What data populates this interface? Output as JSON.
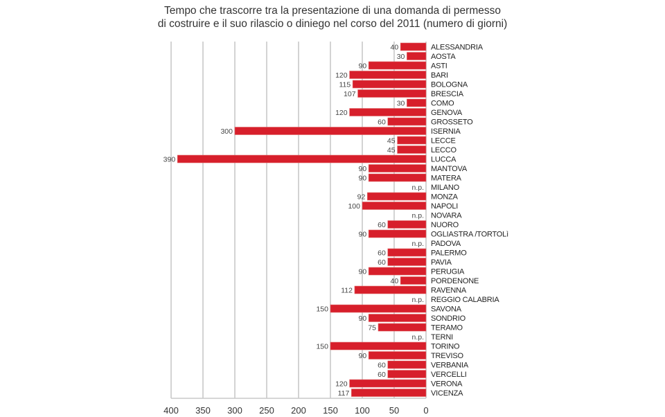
{
  "chart_data": {
    "type": "bar",
    "orientation": "horizontal",
    "title_lines": [
      "Tempo che trascorre tra la presentazione di una domanda di permesso",
      "di costruire e il suo rilascio o diniego nel corso del 2011 (numero di giorni)"
    ],
    "xlabel": "",
    "ylabel": "",
    "xlim": [
      400,
      0
    ],
    "x_ticks": [
      400,
      350,
      300,
      250,
      200,
      150,
      100,
      50,
      0
    ],
    "grid": true,
    "bar_color": "#d71f2b",
    "missing_label": "n.p.",
    "categories": [
      "ALESSANDRIA",
      "AOSTA",
      "ASTI",
      "BARI",
      "BOLOGNA",
      "BRESCIA",
      "COMO",
      "GENOVA",
      "GROSSETO",
      "ISERNIA",
      "LECCE",
      "LECCO",
      "LUCCA",
      "MANTOVA",
      "MATERA",
      "MILANO",
      "MONZA",
      "NAPOLI",
      "NOVARA",
      "NUORO",
      "OGLIASTRA /TORTOLì",
      "PADOVA",
      "PALERMO",
      "PAVIA",
      "PERUGIA",
      "PORDENONE",
      "RAVENNA",
      "REGGIO CALABRIA",
      "SAVONA",
      "SONDRIO",
      "TERAMO",
      "TERNI",
      "TORINO",
      "TREVISO",
      "VERBANIA",
      "VERCELLI",
      "VERONA",
      "VICENZA"
    ],
    "values": [
      40,
      30,
      90,
      120,
      115,
      107,
      30,
      120,
      60,
      300,
      45,
      45,
      390,
      90,
      90,
      null,
      92,
      100,
      null,
      60,
      90,
      null,
      60,
      60,
      90,
      40,
      112,
      null,
      150,
      90,
      75,
      null,
      150,
      90,
      60,
      60,
      120,
      117
    ]
  }
}
